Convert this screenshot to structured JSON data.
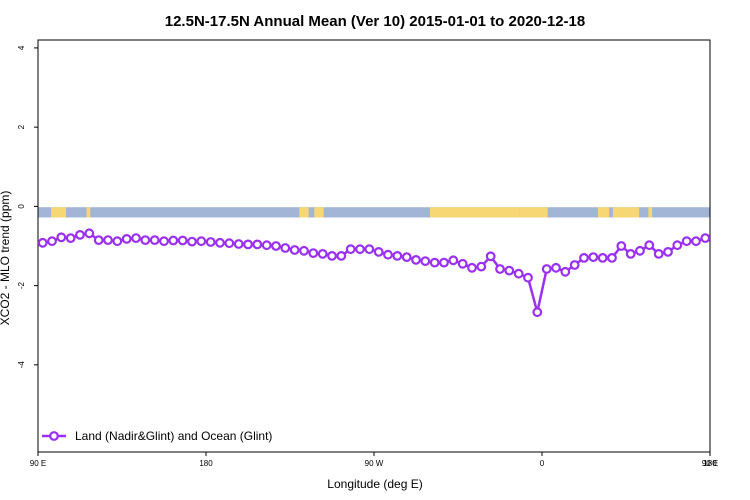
{
  "chart_data": {
    "type": "line",
    "title": "12.5N-17.5N Annual Mean (Ver 10)   2015-01-01 to 2020-12-18",
    "xlabel": "Longitude (deg E)",
    "ylabel": "XCO2 - MLO trend (ppm)",
    "x_tick_labels": [
      "90 E",
      "180",
      "90 W",
      "0",
      "90 E",
      "180"
    ],
    "y_tick_labels": [
      "-4",
      "-2",
      "0",
      "2",
      "4"
    ],
    "y_ticks": [
      -4,
      -2,
      0,
      2,
      4
    ],
    "ylim": [
      -6.2,
      4.2
    ],
    "xlim": [
      90,
      450
    ],
    "grid": false,
    "legend_position": "bottom-left",
    "colors": {
      "series": "#9b30f0",
      "ocean_band": "#a3b5d6",
      "land_band": "#f7d774"
    },
    "band": {
      "y_top": -0.02,
      "y_bottom": -0.28
    },
    "land_segments": [
      [
        97,
        105
      ],
      [
        116,
        118
      ],
      [
        230,
        235
      ],
      [
        238,
        243
      ],
      [
        300,
        348
      ],
      [
        348,
        363
      ],
      [
        390,
        396
      ],
      [
        398,
        412
      ],
      [
        417,
        419
      ]
    ],
    "series": [
      {
        "name": "Land (Nadir&Glint) and Ocean (Glint)",
        "x": [
          92.5,
          97.5,
          102.5,
          107.5,
          112.5,
          117.5,
          122.5,
          127.5,
          132.5,
          137.5,
          142.5,
          147.5,
          152.5,
          157.5,
          162.5,
          167.5,
          172.5,
          177.5,
          182.5,
          187.5,
          192.5,
          197.5,
          202.5,
          207.5,
          212.5,
          217.5,
          222.5,
          227.5,
          232.5,
          237.5,
          242.5,
          247.5,
          252.5,
          257.5,
          262.5,
          267.5,
          272.5,
          277.5,
          282.5,
          287.5,
          292.5,
          297.5,
          302.5,
          307.5,
          312.5,
          317.5,
          322.5,
          327.5,
          332.5,
          337.5,
          342.5,
          347.5,
          352.5,
          357.5,
          362.5,
          367.5,
          372.5,
          377.5,
          382.5,
          387.5,
          392.5,
          397.5,
          402.5,
          407.5,
          412.5,
          417.5,
          422.5,
          427.5,
          432.5,
          437.5,
          442.5,
          447.5
        ],
        "y": [
          -0.92,
          -0.88,
          -0.78,
          -0.8,
          -0.72,
          -0.68,
          -0.85,
          -0.85,
          -0.88,
          -0.82,
          -0.8,
          -0.85,
          -0.85,
          -0.88,
          -0.86,
          -0.86,
          -0.89,
          -0.88,
          -0.9,
          -0.92,
          -0.93,
          -0.95,
          -0.96,
          -0.96,
          -0.98,
          -1.0,
          -1.05,
          -1.1,
          -1.12,
          -1.18,
          -1.2,
          -1.25,
          -1.25,
          -1.08,
          -1.08,
          -1.08,
          -1.15,
          -1.22,
          -1.25,
          -1.28,
          -1.35,
          -1.38,
          -1.42,
          -1.42,
          -1.36,
          -1.45,
          -1.55,
          -1.52,
          -1.26,
          -1.58,
          -1.62,
          -1.7,
          -1.8,
          -2.67,
          -1.58,
          -1.55,
          -1.65,
          -1.48,
          -1.3,
          -1.28,
          -1.3,
          -1.3,
          -1.0,
          -1.2,
          -1.12,
          -0.98,
          -1.2,
          -1.15,
          -0.98,
          -0.88,
          -0.88,
          -0.8
        ]
      }
    ]
  }
}
